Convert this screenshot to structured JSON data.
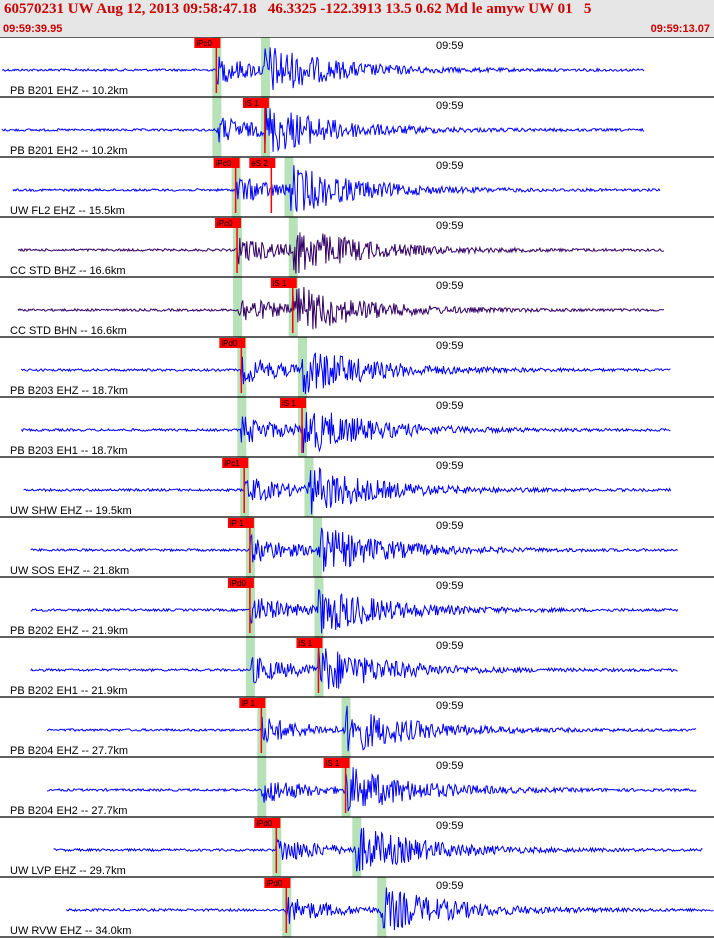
{
  "header": {
    "title": "60570231 UW Aug 12, 2013 09:58:47.18   46.3325 -122.3913 13.5 0.62 Md le amyw UW 01   5",
    "start_time": "09:59:39.95",
    "end_time": "09:59:13.07"
  },
  "colors": {
    "header_bg": "#e6e6e6",
    "header_text": "#cc0000",
    "trace_blue": "#0000ff",
    "trace_purple": "#330066",
    "pick_red": "#ff0000",
    "window_green": "#b7e1b7",
    "divider": "#000000"
  },
  "chart_data": {
    "type": "line",
    "title": "",
    "time_tick_label": "09:59",
    "traces": [
      {
        "label": "PB B201 EHZ -- 10.2km",
        "color": "trace_blue",
        "wave_start": 0.3,
        "wave_end": 90.3,
        "picks": [
          {
            "label": "iPc0",
            "t": 30.3
          }
        ],
        "green": [
          30.3,
          37.1
        ]
      },
      {
        "label": "PB B201 EH2 -- 10.2km",
        "color": "trace_blue",
        "wave_start": 0.3,
        "wave_end": 90.3,
        "picks": [
          {
            "label": "iS 1",
            "t": 37.1
          }
        ],
        "green": [
          30.3,
          37.1
        ]
      },
      {
        "label": "UW FL2 EHZ -- 15.5km",
        "color": "trace_blue",
        "wave_start": 1.8,
        "wave_end": 92.5,
        "picks": [
          {
            "label": "iPc0",
            "t": 33.0
          },
          {
            "label": "eS 2",
            "t": 38.0
          }
        ],
        "green": [
          33.0,
          40.4
        ]
      },
      {
        "label": "CC STD BHZ -- 16.6km",
        "color": "trace_purple",
        "wave_start": 2.5,
        "wave_end": 93.0,
        "picks": [
          {
            "label": "iPc0",
            "t": 33.2
          }
        ],
        "green": [
          33.2,
          41.0
        ]
      },
      {
        "label": "CC STD BHN -- 16.6km",
        "color": "trace_purple",
        "wave_start": 2.5,
        "wave_end": 93.0,
        "picks": [
          {
            "label": "iS 1",
            "t": 41.0
          }
        ],
        "green": [
          33.2,
          41.0
        ]
      },
      {
        "label": "PB B203 EHZ -- 18.7km",
        "color": "trace_blue",
        "wave_start": 3.0,
        "wave_end": 94.0,
        "picks": [
          {
            "label": "iPd0",
            "t": 33.8
          }
        ],
        "green": [
          33.8,
          42.3
        ]
      },
      {
        "label": "PB B203 EH1 -- 18.7km",
        "color": "trace_blue",
        "wave_start": 3.0,
        "wave_end": 94.0,
        "picks": [
          {
            "label": "iS 1",
            "t": 42.3
          }
        ],
        "green": [
          33.8,
          42.3
        ]
      },
      {
        "label": "UW SHW EHZ -- 19.5km",
        "color": "trace_blue",
        "wave_start": 3.3,
        "wave_end": 94.0,
        "picks": [
          {
            "label": "iPc1",
            "t": 34.2
          }
        ],
        "green": [
          34.2,
          43.2
        ]
      },
      {
        "label": "UW SOS EHZ -- 21.8km",
        "color": "trace_blue",
        "wave_start": 4.3,
        "wave_end": 95.0,
        "picks": [
          {
            "label": "iP 1",
            "t": 35.0
          }
        ],
        "green": [
          35.0,
          44.4
        ]
      },
      {
        "label": "PB B202 EHZ -- 21.9km",
        "color": "trace_blue",
        "wave_start": 4.3,
        "wave_end": 95.0,
        "picks": [
          {
            "label": "iPd0",
            "t": 35.0
          }
        ],
        "green": [
          35.0,
          44.6
        ]
      },
      {
        "label": "PB B202 EH1 -- 21.9km",
        "color": "trace_blue",
        "wave_start": 4.3,
        "wave_end": 95.0,
        "picks": [
          {
            "label": "iS 1",
            "t": 44.6
          }
        ],
        "green": [
          35.0,
          44.6
        ]
      },
      {
        "label": "PB B204 EHZ -- 27.7km",
        "color": "trace_blue",
        "wave_start": 6.6,
        "wave_end": 97.5,
        "picks": [
          {
            "label": "iP 1",
            "t": 36.6
          }
        ],
        "green": [
          36.6,
          48.4
        ]
      },
      {
        "label": "PB B204 EH2 -- 27.7km",
        "color": "trace_blue",
        "wave_start": 6.6,
        "wave_end": 97.5,
        "picks": [
          {
            "label": "iS 1",
            "t": 48.4
          }
        ],
        "green": [
          36.6,
          48.4
        ]
      },
      {
        "label": "UW LVP EHZ -- 29.7km",
        "color": "trace_blue",
        "wave_start": 7.5,
        "wave_end": 98.5,
        "picks": [
          {
            "label": "iPd0",
            "t": 38.7
          }
        ],
        "green": [
          38.7,
          49.9
        ]
      },
      {
        "label": "UW RVW EHZ -- 34.0km",
        "color": "trace_blue",
        "wave_start": 9.3,
        "wave_end": 100.0,
        "picks": [
          {
            "label": "iPd0",
            "t": 40.1
          }
        ],
        "green": [
          40.1,
          53.4
        ]
      }
    ]
  }
}
